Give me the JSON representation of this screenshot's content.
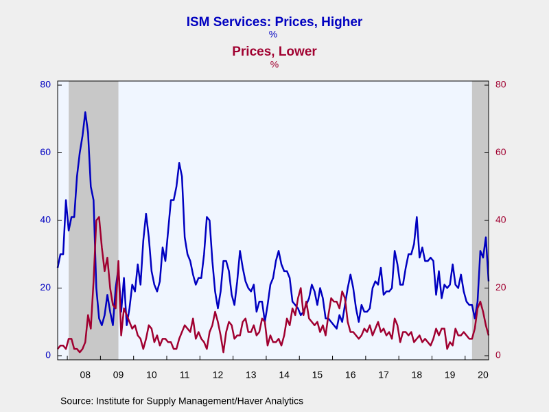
{
  "chart_data": {
    "type": "line",
    "title_units": "%",
    "source": "Source:  Institute for Supply Management/Haver Analytics",
    "categories": [
      null,
      null,
      null,
      null,
      null,
      null,
      null,
      null,
      null,
      null,
      "08",
      null,
      null,
      null,
      null,
      null,
      null,
      null,
      null,
      null,
      null,
      null,
      "09",
      null,
      null,
      null,
      null,
      null,
      null,
      null,
      null,
      null,
      null,
      null,
      "10",
      null,
      null,
      null,
      null,
      null,
      null,
      null,
      null,
      null,
      null,
      null,
      "11",
      null,
      null,
      null,
      null,
      null,
      null,
      null,
      null,
      null,
      null,
      null,
      "12",
      null,
      null,
      null,
      null,
      null,
      null,
      null,
      null,
      null,
      null,
      null,
      "13",
      null,
      null,
      null,
      null,
      null,
      null,
      null,
      null,
      null,
      null,
      null,
      "14",
      null,
      null,
      null,
      null,
      null,
      null,
      null,
      null,
      null,
      null,
      null,
      "15",
      null,
      null,
      null,
      null,
      null,
      null,
      null,
      null,
      null,
      null,
      null,
      "16",
      null,
      null,
      null,
      null,
      null,
      null,
      null,
      null,
      null,
      null,
      null,
      "17",
      null,
      null,
      null,
      null,
      null,
      null,
      null,
      null,
      null,
      null,
      null,
      "18",
      null,
      null,
      null,
      null,
      null,
      null,
      null,
      null,
      null,
      null,
      null,
      "19",
      null,
      null,
      null,
      null,
      null,
      null,
      null,
      null,
      null,
      null,
      null,
      "20",
      null,
      null
    ],
    "series": [
      {
        "name": "ISM Services: Prices, Higher",
        "color": "#0000c0",
        "axis": "y",
        "values": [
          26,
          30,
          30,
          46,
          37,
          41,
          41,
          53,
          60,
          65,
          72,
          66,
          50,
          46,
          20,
          11,
          9,
          12,
          18,
          13,
          9,
          20,
          26,
          13,
          23,
          9,
          14,
          21,
          19,
          27,
          21,
          34,
          42,
          35,
          25,
          21,
          19,
          22,
          32,
          28,
          37,
          46,
          46,
          50,
          57,
          53,
          35,
          30,
          28,
          24,
          21,
          23,
          23,
          30,
          41,
          40,
          28,
          19,
          14,
          19,
          28,
          28,
          25,
          18,
          15,
          22,
          31,
          26,
          22,
          20,
          19,
          21,
          13,
          16,
          16,
          10,
          15,
          21,
          23,
          28,
          31,
          27,
          25,
          25,
          23,
          16,
          15,
          14,
          12,
          13,
          15,
          17,
          21,
          19,
          15,
          20,
          17,
          11,
          11,
          10,
          9,
          8,
          12,
          10,
          15,
          20,
          24,
          20,
          14,
          10,
          15,
          13,
          13,
          14,
          20,
          22,
          21,
          26,
          18,
          19,
          19,
          20,
          31,
          27,
          21,
          21,
          26,
          30,
          30,
          33,
          41,
          29,
          32,
          28,
          28,
          29,
          28,
          18,
          25,
          17,
          21,
          20,
          21,
          27,
          21,
          20,
          24,
          19,
          16,
          15,
          15,
          11,
          16,
          31,
          29,
          35,
          22
        ]
      },
      {
        "name": "Prices, Lower",
        "color": "#a00030",
        "axis": "y2",
        "values": [
          2,
          3,
          3,
          2,
          5,
          5,
          2,
          2,
          1,
          2,
          4,
          12,
          8,
          22,
          40,
          41,
          32,
          25,
          29,
          20,
          15,
          14,
          28,
          6,
          14,
          12,
          10,
          8,
          9,
          6,
          5,
          2,
          5,
          9,
          8,
          4,
          6,
          3,
          5,
          5,
          4,
          4,
          2,
          2,
          5,
          7,
          9,
          8,
          7,
          11,
          5,
          7,
          5,
          4,
          2,
          7,
          9,
          13,
          10,
          6,
          1,
          7,
          10,
          9,
          5,
          6,
          6,
          10,
          11,
          7,
          7,
          9,
          6,
          7,
          11,
          10,
          3,
          6,
          4,
          4,
          5,
          3,
          6,
          11,
          9,
          14,
          12,
          17,
          20,
          12,
          16,
          11,
          10,
          9,
          10,
          7,
          9,
          6,
          12,
          17,
          16,
          16,
          14,
          19,
          17,
          10,
          7,
          7,
          6,
          5,
          6,
          8,
          7,
          9,
          6,
          8,
          10,
          7,
          8,
          6,
          7,
          5,
          11,
          9,
          4,
          7,
          7,
          6,
          7,
          4,
          5,
          6,
          4,
          5,
          4,
          3,
          5,
          8,
          6,
          8,
          8,
          2,
          4,
          3,
          8,
          6,
          6,
          7,
          6,
          5,
          5,
          8,
          14,
          16,
          13,
          9,
          6
        ]
      }
    ],
    "shaded": [
      {
        "start": 4,
        "end": 22
      },
      {
        "start": 150,
        "end": 156
      }
    ],
    "ylim": [
      0,
      80
    ],
    "yticks": [
      0,
      20,
      40,
      60,
      80
    ],
    "y2lim": [
      0,
      80
    ],
    "y2ticks": [
      0,
      20,
      40,
      60,
      80
    ]
  }
}
